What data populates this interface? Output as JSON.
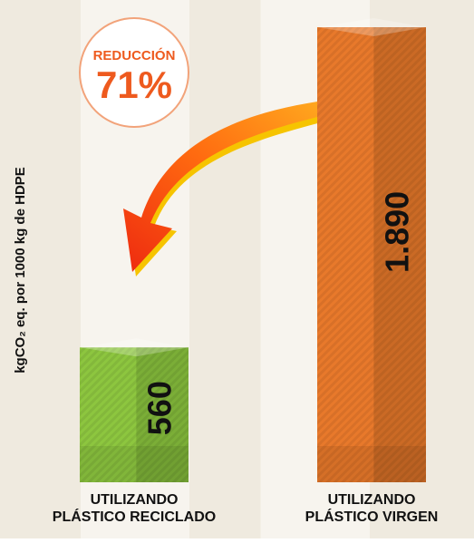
{
  "chart_data": {
    "type": "bar",
    "y_axis_label": "kgCO₂ eq. por 1000 kg de HDPE",
    "annotation": {
      "title": "REDUCCIÓN",
      "value": "71%"
    },
    "categories": [
      [
        "UTILIZANDO",
        "PLÁSTICO RECICLADO"
      ],
      [
        "UTILIZANDO",
        "PLÁSTICO VIRGEN"
      ]
    ],
    "values": [
      560,
      1890
    ],
    "value_labels": [
      "560",
      "1.890"
    ],
    "colors": [
      "#8dc63f",
      "#e8792b"
    ]
  }
}
